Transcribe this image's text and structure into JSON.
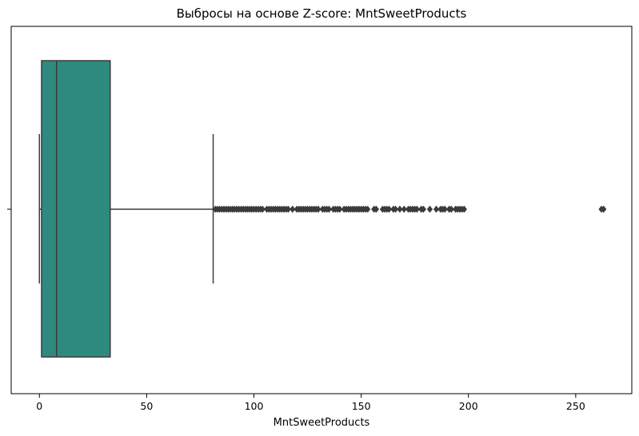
{
  "chart_data": {
    "type": "box",
    "orientation": "horizontal",
    "title": "Выбросы на основе Z-score: MntSweetProducts",
    "xlabel": "MntSweetProducts",
    "ylabel": "",
    "xlim": [
      -13.15,
      276.15
    ],
    "xticks": [
      0,
      50,
      100,
      150,
      200,
      250
    ],
    "xtick_labels": [
      "0",
      "50",
      "100",
      "150",
      "200",
      "250"
    ],
    "grid": false,
    "colors": {
      "box": "#2e8a7f",
      "line": "#3b3b3b"
    },
    "box": {
      "whisker_low": 0,
      "q1": 1,
      "median": 8,
      "q3": 33,
      "whisker_high": 81
    },
    "outliers": [
      82,
      83,
      84,
      85,
      86,
      87,
      88,
      89,
      90,
      91,
      92,
      93,
      94,
      95,
      96,
      97,
      98,
      99,
      100,
      101,
      102,
      103,
      104,
      106,
      107,
      108,
      109,
      110,
      111,
      112,
      113,
      114,
      115,
      116,
      118,
      120,
      121,
      122,
      123,
      124,
      125,
      126,
      127,
      128,
      129,
      130,
      132,
      133,
      134,
      135,
      137,
      138,
      139,
      140,
      142,
      143,
      144,
      145,
      146,
      147,
      148,
      149,
      150,
      151,
      152,
      153,
      156,
      157,
      160,
      161,
      162,
      163,
      165,
      166,
      168,
      170,
      172,
      173,
      174,
      175,
      176,
      178,
      179,
      182,
      185,
      187,
      188,
      189,
      191,
      192,
      194,
      195,
      196,
      197,
      198,
      262,
      263
    ]
  }
}
